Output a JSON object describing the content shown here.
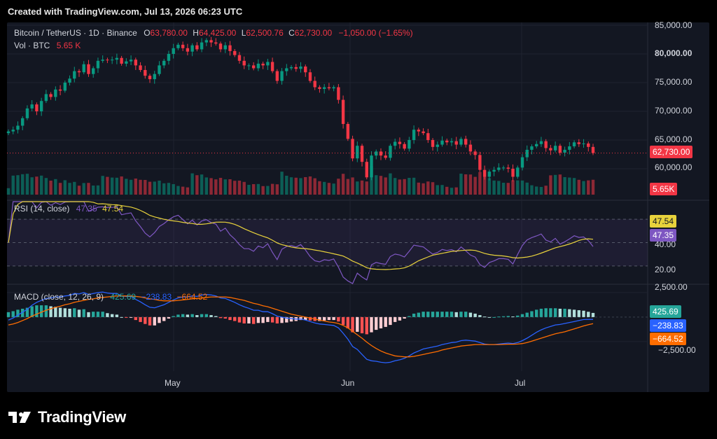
{
  "header": {
    "created_text": "Created with TradingView.com, Jul 13, 2026 06:23 UTC"
  },
  "legend": {
    "symbol": "Bitcoin / TetherUS · 1D · Binance",
    "o_label": "O",
    "o_value": "63,780.00",
    "h_label": "H",
    "h_value": "64,425.00",
    "l_label": "L",
    "l_value": "62,500.76",
    "c_label": "C",
    "c_value": "62,730.00",
    "change": "−1,050.00 (−1.65%)",
    "vol_label": "Vol · BTC",
    "vol_value": "5.65 K",
    "rsi_label": "RSI (14, close)",
    "rsi_value": "47.35",
    "rsi_ma_value": "47.54",
    "macd_label": "MACD (close, 12, 26, 9)",
    "macd_hist": "425.69",
    "macd_line": "−238.83",
    "macd_signal": "−664.52"
  },
  "price_axis": [
    "85,000.00",
    "80,000.00",
    "75,000.00",
    "70,000.00",
    "65,000.00",
    "60,000.00"
  ],
  "rsi_axis": [
    "40.00",
    "20.00"
  ],
  "macd_axis": [
    "2,500.00",
    "−2,500.00"
  ],
  "x_axis": [
    "May",
    "Jun",
    "Jul"
  ],
  "tags": {
    "last_price": "62,730.00",
    "last_volume": "5.65K",
    "rsi_ma": "47.54",
    "rsi": "47.35",
    "macd_hist": "425.69",
    "macd_line": "−238.83",
    "macd_signal": "−664.52"
  },
  "footer": {
    "brand": "TradingView"
  },
  "colors": {
    "up": "#089981",
    "down": "#f23645",
    "rsi": "#7e57c2",
    "rsi_ma": "#e8d23c",
    "macd": "#2962ff",
    "signal": "#ff6d00",
    "background": "#131722"
  },
  "chart_data": {
    "type": "candlestick",
    "price_scale": {
      "min": 57000,
      "max": 85000
    },
    "candles_close": [
      66500,
      66800,
      67500,
      68800,
      70500,
      71200,
      70000,
      71800,
      73000,
      72500,
      73800,
      73600,
      75000,
      75700,
      77000,
      76800,
      78200,
      76500,
      77500,
      78800,
      79000,
      78900,
      79000,
      79300,
      78300,
      78700,
      79000,
      78000,
      77200,
      76200,
      75600,
      76500,
      78000,
      78800,
      80000,
      81000,
      81600,
      81000,
      80400,
      81500,
      80800,
      82000,
      82400,
      82000,
      81800,
      80800,
      81500,
      80500,
      79800,
      78800,
      78000,
      78000,
      77500,
      78300,
      78000,
      78600,
      77000,
      75300,
      77000,
      77500,
      77700,
      77400,
      77800,
      76800,
      75300,
      74200,
      73900,
      74200,
      74000,
      74200,
      72000,
      67800,
      65200,
      61800,
      64000,
      61200,
      58500,
      62300,
      63000,
      62300,
      61900,
      64000,
      64700,
      64300,
      63500,
      65000,
      66800,
      66500,
      66200,
      65000,
      63800,
      64200,
      64900,
      64600,
      64800,
      64200,
      65200,
      64200,
      63000,
      62400,
      59800,
      58600,
      59500,
      59800,
      60200,
      60200,
      60000,
      58600,
      60200,
      62000,
      63300,
      63900,
      64300,
      64800,
      63600,
      63200,
      64000,
      62800,
      63300,
      63900,
      64600,
      64300,
      64400,
      63800,
      62730
    ],
    "volume_scale": {
      "max_label": "5.65K"
    },
    "rsi_range": [
      15,
      85
    ],
    "rsi_levels": [
      30,
      50,
      70
    ],
    "macd_range": [
      -5500,
      3200
    ],
    "macd_line": [
      -300,
      -100,
      200,
      500,
      800,
      1200,
      1500,
      1700,
      1900,
      1950,
      2050,
      2050,
      2150,
      2200,
      2400,
      2350,
      2500,
      2300,
      2400,
      2500,
      2550,
      2450,
      2400,
      2400,
      2150,
      2100,
      2100,
      1800,
      1550,
      1250,
      1000,
      950,
      1100,
      1250,
      1500,
      1750,
      1950,
      2050,
      2050,
      2150,
      2100,
      2250,
      2300,
      2250,
      2150,
      1950,
      1900,
      1700,
      1500,
      1250,
      1050,
      900,
      700,
      700,
      550,
      550,
      350,
      100,
      0,
      -100,
      -150,
      -200,
      -200,
      -300,
      -450,
      -600,
      -700,
      -750,
      -800,
      -850,
      -1100,
      -1650,
      -2250,
      -3000,
      -3300,
      -3800,
      -4300,
      -4450,
      -4500,
      -4600,
      -4650,
      -4600,
      -4450,
      -4350,
      -4200,
      -3950,
      -3650,
      -3450,
      -3250,
      -3150,
      -3050,
      -2950,
      -2800,
      -2700,
      -2600,
      -2550,
      -2400,
      -2350,
      -2400,
      -2450,
      -2600,
      -2750,
      -2800,
      -2800,
      -2750,
      -2700,
      -2650,
      -2700,
      -2600,
      -2400,
      -2150,
      -1850,
      -1550,
      -1300,
      -1100,
      -950,
      -800,
      -750,
      -650,
      -550,
      -450,
      -350,
      -250,
      -240,
      -239
    ],
    "macd_signal": [
      -800,
      -700,
      -550,
      -350,
      -150,
      100,
      300,
      500,
      700,
      850,
      1000,
      1100,
      1250,
      1350,
      1500,
      1600,
      1700,
      1800,
      1850,
      1950,
      2000,
      2050,
      2100,
      2150,
      2150,
      2150,
      2150,
      2100,
      2050,
      1950,
      1850,
      1800,
      1700,
      1650,
      1650,
      1650,
      1700,
      1750,
      1800,
      1850,
      1900,
      1950,
      2000,
      2050,
      2050,
      2050,
      2050,
      2000,
      1900,
      1800,
      1700,
      1550,
      1400,
      1300,
      1150,
      1050,
      900,
      750,
      600,
      450,
      300,
      200,
      100,
      0,
      -100,
      -200,
      -300,
      -400,
      -500,
      -550,
      -650,
      -850,
      -1100,
      -1450,
      -1800,
      -2150,
      -2550,
      -2900,
      -3200,
      -3450,
      -3650,
      -3800,
      -3950,
      -4000,
      -4050,
      -4050,
      -4000,
      -3900,
      -3800,
      -3700,
      -3600,
      -3500,
      -3350,
      -3250,
      -3150,
      -3050,
      -2950,
      -2900,
      -2850,
      -2800,
      -2800,
      -2800,
      -2800,
      -2800,
      -2800,
      -2780,
      -2760,
      -2760,
      -2750,
      -2700,
      -2600,
      -2450,
      -2300,
      -2150,
      -2000,
      -1850,
      -1700,
      -1600,
      -1500,
      -1350,
      -1200,
      -1050,
      -900,
      -780,
      -664
    ]
  }
}
